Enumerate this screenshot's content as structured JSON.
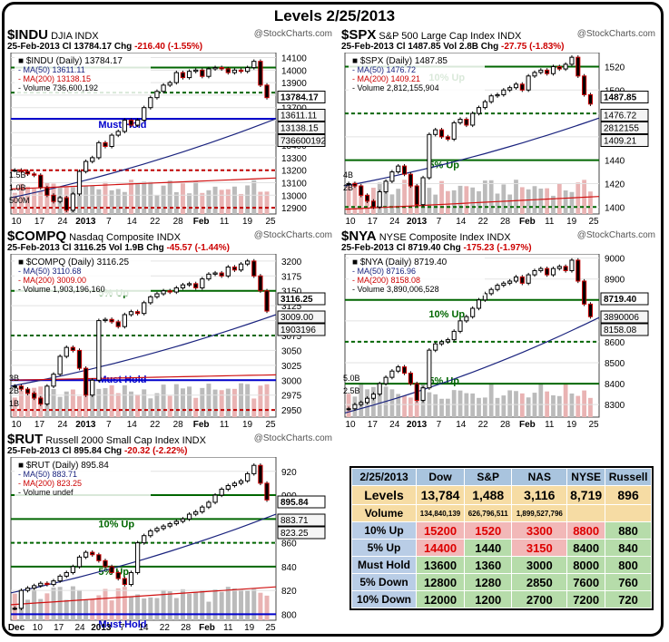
{
  "page_title": "Levels 2/25/2013",
  "brand": "@StockCharts.com",
  "charts": [
    {
      "id": "indu",
      "symbol": "$INDU",
      "name": "DJIA INDX",
      "date": "25-Feb-2013",
      "close": "13784.17",
      "chg": "-216.40 (-1.55%)",
      "vol": "",
      "legend_title": "$INDU (Daily) 13784.17",
      "legend_ma50": "MA(50) 13611.11",
      "legend_ma200": "MA(200) 13138.15",
      "legend_vol": "Volume 736,600,192",
      "yticks": [
        "14100",
        "14000",
        "13900",
        "13800",
        "13700",
        "13600",
        "13500",
        "13400",
        "13300",
        "13200",
        "13100",
        "13000",
        "12900"
      ],
      "ymin": 12850,
      "ymax": 14140,
      "boxes": [
        "13784.17",
        "13611.11",
        "13138.15",
        "736600192"
      ],
      "hlines": [
        {
          "v": 13611,
          "color": "#0000cc",
          "dash": false
        },
        {
          "v": 14020,
          "color": "#006600",
          "dash": false
        },
        {
          "v": 13820,
          "color": "#006600",
          "dash": true
        },
        {
          "v": 13200,
          "color": "#c00000",
          "dash": true
        },
        {
          "v": 12900,
          "color": "#c00000",
          "dash": true
        }
      ],
      "level_label": "Must Hold",
      "vol_labels": [
        "1.5B",
        "1.0B",
        "500M"
      ],
      "xticks": [
        "10",
        "17",
        "24",
        "2013",
        "7",
        "14",
        "22",
        "28",
        "Feb",
        "11",
        "19",
        "25"
      ],
      "trajectory": [
        13200,
        13190,
        13170,
        13160,
        13060,
        13000,
        12950,
        12980,
        12880,
        13010,
        13190,
        13270,
        13300,
        13420,
        13390,
        13480,
        13510,
        13600,
        13560,
        13600,
        13700,
        13780,
        13830,
        13880,
        13900,
        13980,
        13940,
        13990,
        14000,
        13950,
        14010,
        14020,
        14010,
        13980,
        14000,
        13990,
        14020,
        14070,
        13880,
        13780
      ],
      "ma50_start": 12980,
      "ma50_end": 13611,
      "ma200_start": 13050,
      "ma200_end": 13138
    },
    {
      "id": "spx",
      "symbol": "$SPX",
      "name": "S&P 500 Large Cap Index INDX",
      "date": "25-Feb-2013",
      "close": "1487.85",
      "chg": "-27.75 (-1.83%)",
      "vol": "2.8B",
      "legend_title": "$SPX (Daily) 1487.85",
      "legend_ma50": "MA(50) 1476.72",
      "legend_ma200": "MA(200) 1409.21",
      "legend_vol": "Volume 2,812,155,904",
      "yticks": [
        "1520",
        "1500",
        "1480",
        "1460",
        "1440",
        "1420",
        "1400"
      ],
      "ymin": 1394,
      "ymax": 1532,
      "boxes": [
        "1487.85",
        "1476.72",
        "2812155",
        "1409.21"
      ],
      "hlines": [
        {
          "v": 1520,
          "color": "#006600",
          "dash": false
        },
        {
          "v": 1480,
          "color": "#006600",
          "dash": true
        },
        {
          "v": 1440,
          "color": "#006600",
          "dash": false
        },
        {
          "v": 1400,
          "color": "#006600",
          "dash": true
        }
      ],
      "level_labels": [
        "10% Up",
        "5% Up"
      ],
      "vol_labels": [
        "4B",
        "2B"
      ],
      "xticks": [
        "10",
        "17",
        "24",
        "2013",
        "7",
        "14",
        "22",
        "28",
        "Feb",
        "11",
        "19",
        "25"
      ],
      "trajectory": [
        1420,
        1418,
        1410,
        1405,
        1400,
        1413,
        1422,
        1430,
        1435,
        1428,
        1418,
        1402,
        1425,
        1462,
        1466,
        1460,
        1458,
        1472,
        1475,
        1470,
        1480,
        1485,
        1490,
        1495,
        1496,
        1500,
        1502,
        1505,
        1500,
        1512,
        1515,
        1517,
        1514,
        1520,
        1518,
        1522,
        1528,
        1512,
        1496,
        1488
      ],
      "ma50_start": 1418,
      "ma50_end": 1476,
      "ma200_start": 1398,
      "ma200_end": 1409
    },
    {
      "id": "compq",
      "symbol": "$COMPQ",
      "name": "Nasdaq Composite INDX",
      "date": "25-Feb-2013",
      "close": "3116.25",
      "chg": "-45.57 (-1.44%)",
      "vol": "1.9B",
      "legend_title": "$COMPQ (Daily) 3116.25",
      "legend_ma50": "MA(50) 3110.68",
      "legend_ma200": "MA(200) 3009.00",
      "legend_vol": "Volume 1,903,196,160",
      "yticks": [
        "3200",
        "3175",
        "3150",
        "3125",
        "3100",
        "3075",
        "3050",
        "3025",
        "3000",
        "2975",
        "2950"
      ],
      "ymin": 2938,
      "ymax": 3212,
      "boxes": [
        "3116.25",
        "3009.00",
        "1903196"
      ],
      "hlines": [
        {
          "v": 3150,
          "color": "#006600",
          "dash": false
        },
        {
          "v": 3075,
          "color": "#006600",
          "dash": true
        },
        {
          "v": 3000,
          "color": "#0000cc",
          "dash": false
        },
        {
          "v": 2950,
          "color": "#c00000",
          "dash": true
        }
      ],
      "level_labels": [
        "5% Up",
        "Must Hold"
      ],
      "vol_labels": [
        "3B",
        "2B",
        "1B"
      ],
      "xticks": [
        "10",
        "17",
        "24",
        "2013",
        "7",
        "14",
        "22",
        "28",
        "Feb",
        "11",
        "19",
        "25"
      ],
      "trajectory": [
        2990,
        2985,
        2978,
        2970,
        2960,
        2990,
        3010,
        3040,
        3055,
        3050,
        3020,
        2975,
        3000,
        3100,
        3102,
        3098,
        3090,
        3110,
        3115,
        3112,
        3130,
        3140,
        3145,
        3150,
        3148,
        3155,
        3160,
        3162,
        3155,
        3170,
        3178,
        3180,
        3175,
        3190,
        3185,
        3195,
        3200,
        3175,
        3150,
        3116
      ],
      "ma50_start": 2990,
      "ma50_end": 3110,
      "ma200_start": 3000,
      "ma200_end": 3009
    },
    {
      "id": "nya",
      "symbol": "$NYA",
      "name": "NYSE Composite Index INDX",
      "date": "25-Feb-2013",
      "close": "8719.40",
      "chg": "-175.23 (-1.97%)",
      "vol": "",
      "legend_title": "$NYA (Daily) 8719.40",
      "legend_ma50": "MA(50) 8716.96",
      "legend_ma200": "MA(200) 8158.08",
      "legend_vol": "Volume 3,890,006,528",
      "yticks": [
        "9000",
        "8900",
        "8800",
        "8700",
        "8600",
        "8500",
        "8400",
        "8300"
      ],
      "ymin": 8240,
      "ymax": 9020,
      "boxes": [
        "8719.40",
        "3890006",
        "8158.08"
      ],
      "hlines": [
        {
          "v": 8800,
          "color": "#006600",
          "dash": false
        },
        {
          "v": 8600,
          "color": "#006600",
          "dash": true
        },
        {
          "v": 8400,
          "color": "#006600",
          "dash": false
        }
      ],
      "level_labels": [
        "10% Up",
        "5% Up"
      ],
      "vol_labels": [
        "5.0B",
        "2.5B"
      ],
      "xticks": [
        "10",
        "17",
        "24",
        "2013",
        "7",
        "14",
        "22",
        "28",
        "Feb",
        "11",
        "19",
        "25"
      ],
      "trajectory": [
        8280,
        8300,
        8310,
        8330,
        8350,
        8400,
        8430,
        8460,
        8480,
        8450,
        8400,
        8320,
        8380,
        8560,
        8590,
        8600,
        8610,
        8650,
        8700,
        8720,
        8760,
        8800,
        8830,
        8850,
        8870,
        8880,
        8890,
        8910,
        8880,
        8920,
        8940,
        8950,
        8920,
        8950,
        8960,
        8940,
        8990,
        8890,
        8780,
        8720
      ],
      "ma50_start": 8260,
      "ma50_end": 8716,
      "ma200_start": 8100,
      "ma200_end": 8158
    },
    {
      "id": "rut",
      "symbol": "$RUT",
      "name": "Russell 2000 Small Cap Index INDX",
      "date": "25-Feb-2013",
      "close": "895.84",
      "chg": "-20.32 (-2.22%)",
      "vol": "",
      "legend_title": "$RUT (Daily) 895.84",
      "legend_ma50": "MA(50) 883.71",
      "legend_ma200": "MA(200) 823.25",
      "legend_vol": "Volume undef",
      "yticks": [
        "920",
        "900",
        "880",
        "860",
        "840",
        "820",
        "800"
      ],
      "ymin": 795,
      "ymax": 932,
      "boxes": [
        "895.84",
        "883.71",
        "823.25"
      ],
      "hlines": [
        {
          "v": 900,
          "color": "#006600",
          "dash": false
        },
        {
          "v": 880,
          "color": "#006600",
          "dash": false
        },
        {
          "v": 860,
          "color": "#006600",
          "dash": true
        },
        {
          "v": 840,
          "color": "#006600",
          "dash": false
        },
        {
          "v": 800,
          "color": "#0000cc",
          "dash": false
        }
      ],
      "level_labels": [
        "10% Up",
        "5% Up",
        "Must Hold"
      ],
      "vol_labels": [],
      "xticks": [
        "Dec",
        "10",
        "17",
        "24",
        "2013",
        "7",
        "14",
        "22",
        "28",
        "Feb",
        "11",
        "19",
        "25"
      ],
      "trajectory": [
        805,
        820,
        822,
        824,
        826,
        825,
        828,
        832,
        835,
        840,
        848,
        852,
        850,
        845,
        840,
        835,
        830,
        825,
        835,
        860,
        866,
        870,
        872,
        874,
        876,
        878,
        880,
        884,
        886,
        890,
        894,
        900,
        905,
        908,
        910,
        912,
        918,
        925,
        910,
        896
      ],
      "ma50_start": 818,
      "ma50_end": 884,
      "ma200_start": 808,
      "ma200_end": 823
    }
  ],
  "chart_data": [
    {
      "type": "table",
      "title": "2/25/2013",
      "columns": [
        "Dow",
        "S&P",
        "NAS",
        "NYSE",
        "Russell"
      ],
      "rows": [
        {
          "label": "Levels",
          "values": [
            "13,784",
            "1,488",
            "3,116",
            "8,719",
            "896"
          ]
        },
        {
          "label": "Volume",
          "values": [
            "134,840,139",
            "626,796,511",
            "1,899,527,796",
            "",
            ""
          ]
        },
        {
          "label": "10% Up",
          "values": [
            "15200",
            "1520",
            "3300",
            "8800",
            "880"
          ]
        },
        {
          "label": "5% Up",
          "values": [
            "14400",
            "1440",
            "3150",
            "8400",
            "840"
          ]
        },
        {
          "label": "Must Hold",
          "values": [
            "13600",
            "1360",
            "3000",
            "8000",
            "800"
          ]
        },
        {
          "label": "5% Down",
          "values": [
            "12800",
            "1280",
            "2850",
            "7600",
            "760"
          ]
        },
        {
          "label": "10% Down",
          "values": [
            "12000",
            "1200",
            "2700",
            "7200",
            "720"
          ]
        }
      ]
    }
  ],
  "table_colors": {
    "10% Up": [
      "r",
      "r",
      "r",
      "r",
      "g"
    ],
    "5% Up": [
      "r",
      "g",
      "r",
      "g",
      "g"
    ],
    "Must Hold": [
      "g",
      "g",
      "g",
      "g",
      "g"
    ],
    "5% Down": [
      "g",
      "g",
      "g",
      "g",
      "g"
    ],
    "10% Down": [
      "g",
      "g",
      "g",
      "g",
      "g"
    ]
  }
}
